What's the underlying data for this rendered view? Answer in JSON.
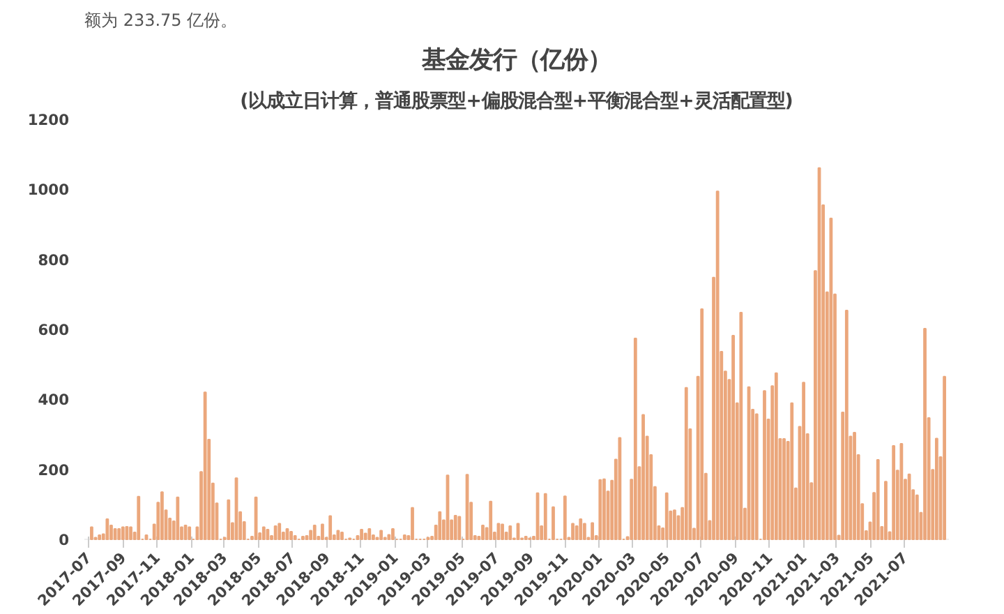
{
  "chart_data": {
    "type": "bar",
    "title": "基金发行（亿份）",
    "subtitle": "(以成立日计算，普通股票型+偏股混合型+平衡混合型+灵活配置型)",
    "annotations": [
      "额为 233.75 亿份。"
    ],
    "color": "#eba77c",
    "x": [
      "2017-07-07",
      "2017-07-14",
      "2017-07-21",
      "2017-07-28",
      "2017-08-04",
      "2017-08-11",
      "2017-08-18",
      "2017-08-25",
      "2017-09-01",
      "2017-09-08",
      "2017-09-15",
      "2017-09-22",
      "2017-09-29",
      "2017-10-06",
      "2017-10-13",
      "2017-10-20",
      "2017-10-27",
      "2017-11-03",
      "2017-11-10",
      "2017-11-17",
      "2017-11-24",
      "2017-12-01",
      "2017-12-08",
      "2017-12-15",
      "2017-12-22",
      "2017-12-29",
      "2018-01-05",
      "2018-01-12",
      "2018-01-19",
      "2018-01-26",
      "2018-02-02",
      "2018-02-09",
      "2018-02-16",
      "2018-02-23",
      "2018-03-02",
      "2018-03-09",
      "2018-03-16",
      "2018-03-23",
      "2018-03-30",
      "2018-04-06",
      "2018-04-13",
      "2018-04-20",
      "2018-04-27",
      "2018-05-04",
      "2018-05-11",
      "2018-05-18",
      "2018-05-25",
      "2018-06-01",
      "2018-06-08",
      "2018-06-15",
      "2018-06-22",
      "2018-06-29",
      "2018-07-06",
      "2018-07-13",
      "2018-07-20",
      "2018-07-27",
      "2018-08-03",
      "2018-08-10",
      "2018-08-17",
      "2018-08-24",
      "2018-08-31",
      "2018-09-07",
      "2018-09-14",
      "2018-09-21",
      "2018-09-28",
      "2018-10-05",
      "2018-10-12",
      "2018-10-19",
      "2018-10-26",
      "2018-11-02",
      "2018-11-09",
      "2018-11-16",
      "2018-11-23",
      "2018-11-30",
      "2018-12-07",
      "2018-12-14",
      "2018-12-21",
      "2018-12-28",
      "2019-01-04",
      "2019-01-11",
      "2019-01-18",
      "2019-01-25",
      "2019-02-01",
      "2019-02-08",
      "2019-02-15",
      "2019-02-22",
      "2019-03-01",
      "2019-03-08",
      "2019-03-15",
      "2019-03-22",
      "2019-03-29",
      "2019-04-05",
      "2019-04-12",
      "2019-04-19",
      "2019-04-26",
      "2019-05-03",
      "2019-05-10",
      "2019-05-17",
      "2019-05-24",
      "2019-05-31",
      "2019-06-07",
      "2019-06-14",
      "2019-06-21",
      "2019-06-28",
      "2019-07-05",
      "2019-07-12",
      "2019-07-19",
      "2019-07-26",
      "2019-08-02",
      "2019-08-09",
      "2019-08-16",
      "2019-08-23",
      "2019-08-30",
      "2019-09-06",
      "2019-09-13",
      "2019-09-20",
      "2019-09-27",
      "2019-10-04",
      "2019-10-11",
      "2019-10-18",
      "2019-10-25",
      "2019-11-01",
      "2019-11-08",
      "2019-11-15",
      "2019-11-22",
      "2019-11-29",
      "2019-12-06",
      "2019-12-13",
      "2019-12-20",
      "2019-12-27",
      "2020-01-03",
      "2020-01-10",
      "2020-01-17",
      "2020-01-24",
      "2020-01-31",
      "2020-02-07",
      "2020-02-14",
      "2020-02-21",
      "2020-02-28",
      "2020-03-06",
      "2020-03-13",
      "2020-03-20",
      "2020-03-27",
      "2020-04-03",
      "2020-04-10",
      "2020-04-17",
      "2020-04-24",
      "2020-05-01",
      "2020-05-08",
      "2020-05-15",
      "2020-05-22",
      "2020-05-29",
      "2020-06-05",
      "2020-06-12",
      "2020-06-19",
      "2020-06-26",
      "2020-07-03",
      "2020-07-10",
      "2020-07-17",
      "2020-07-24",
      "2020-07-31",
      "2020-08-07",
      "2020-08-14",
      "2020-08-21",
      "2020-08-28",
      "2020-09-04",
      "2020-09-11",
      "2020-09-18",
      "2020-09-25",
      "2020-10-02",
      "2020-10-09",
      "2020-10-16",
      "2020-10-23",
      "2020-10-30",
      "2020-11-06",
      "2020-11-13",
      "2020-11-20",
      "2020-11-27",
      "2020-12-04",
      "2020-12-11",
      "2020-12-18",
      "2020-12-25",
      "2021-01-01",
      "2021-01-08",
      "2021-01-15",
      "2021-01-22",
      "2021-01-29",
      "2021-02-05",
      "2021-02-12",
      "2021-02-19",
      "2021-02-26",
      "2021-03-05",
      "2021-03-12",
      "2021-03-19",
      "2021-03-26",
      "2021-04-02",
      "2021-04-09",
      "2021-04-16",
      "2021-04-23",
      "2021-04-30",
      "2021-05-07",
      "2021-05-14",
      "2021-05-21",
      "2021-05-28",
      "2021-06-04",
      "2021-06-11",
      "2021-06-18",
      "2021-06-25",
      "2021-07-02",
      "2021-07-09",
      "2021-07-16",
      "2021-07-23",
      "2021-07-30",
      "2021-08-06",
      "2021-08-13",
      "2021-08-20",
      "2021-08-27",
      "2021-09-03",
      "2021-09-10"
    ],
    "values": [
      35,
      5,
      12,
      15,
      58,
      40,
      30,
      30,
      35,
      36,
      35,
      20,
      122,
      0,
      12,
      0,
      43,
      105,
      135,
      83,
      60,
      52,
      120,
      35,
      40,
      35,
      0,
      35,
      193,
      420,
      285,
      160,
      103,
      0,
      5,
      112,
      47,
      175,
      78,
      50,
      0,
      8,
      120,
      18,
      35,
      28,
      10,
      38,
      45,
      20,
      30,
      22,
      10,
      0,
      8,
      10,
      25,
      40,
      8,
      43,
      5,
      67,
      12,
      25,
      20,
      0,
      3,
      0,
      10,
      28,
      17,
      30,
      12,
      5,
      25,
      5,
      13,
      30,
      0,
      0,
      12,
      10,
      90,
      0,
      0,
      0,
      5,
      8,
      40,
      78,
      55,
      183,
      55,
      68,
      65,
      0,
      185,
      105,
      10,
      8,
      40,
      33,
      108,
      20,
      45,
      43,
      20,
      38,
      3,
      45,
      3,
      8,
      3,
      8,
      132,
      38,
      130,
      0,
      92,
      0,
      0,
      123,
      5,
      45,
      38,
      58,
      45,
      5,
      47,
      10,
      170,
      172,
      137,
      168,
      228,
      290,
      0,
      7,
      171,
      574,
      207,
      356,
      294,
      241,
      150,
      38,
      32,
      132,
      80,
      83,
      67,
      90,
      433,
      315,
      31,
      465,
      658,
      188,
      53,
      748,
      994,
      536,
      480,
      456,
      582,
      389,
      648,
      88,
      435,
      371,
      358,
      0,
      424,
      343,
      438,
      475,
      287,
      287,
      279,
      389,
      146,
      322,
      448,
      301,
      161,
      767,
      1061,
      955,
      706,
      917,
      700,
      11,
      363,
      654,
      294,
      305,
      241,
      101,
      24,
      49,
      133,
      227,
      36,
      165,
      21,
      267,
      197,
      273,
      171,
      186,
      141,
      126,
      76,
      602,
      347,
      199,
      288,
      235,
      465
    ],
    "xlim": [
      "2017-06-24",
      "2021-09-18"
    ],
    "xticks": [
      "2017-07",
      "2017-09",
      "2017-11",
      "2018-01",
      "2018-03",
      "2018-05",
      "2018-07",
      "2018-09",
      "2018-11",
      "2019-01",
      "2019-03",
      "2019-05",
      "2019-07",
      "2019-09",
      "2019-11",
      "2020-01",
      "2020-03",
      "2020-05",
      "2020-07",
      "2020-09",
      "2020-11",
      "2021-01",
      "2021-03",
      "2021-05",
      "2021-07"
    ],
    "ylim": [
      0,
      1200
    ],
    "yticks": [
      0,
      200,
      400,
      600,
      800,
      1000,
      1200
    ],
    "grid": false
  }
}
